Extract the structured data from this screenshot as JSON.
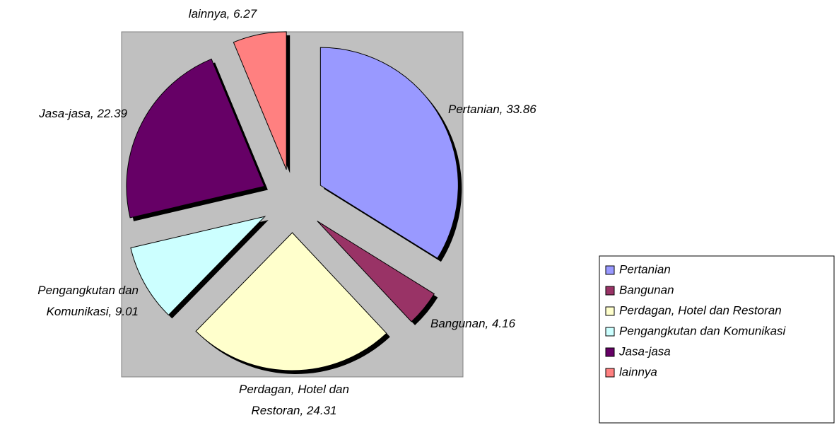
{
  "chart_data": {
    "type": "pie",
    "categories": [
      "Pertanian",
      "Bangunan",
      "Perdagan, Hotel dan Restoran",
      "Pengangkutan dan Komunikasi",
      "Jasa-jasa",
      "lainnya"
    ],
    "values": [
      33.86,
      4.16,
      24.31,
      9.01,
      22.39,
      6.27
    ],
    "value_labels": [
      "Pertanian, 33.86",
      "Bangunan, 4.16",
      "Perdagan, Hotel dan Restoran, 24.31",
      "Pengangkutan dan Komunikasi, 9.01",
      "Jasa-jasa, 22.39",
      "lainnya, 6.27"
    ],
    "colors": [
      "#9999ff",
      "#993366",
      "#ffffcc",
      "#ccffff",
      "#660066",
      "#ff8080"
    ],
    "legend": "right"
  }
}
